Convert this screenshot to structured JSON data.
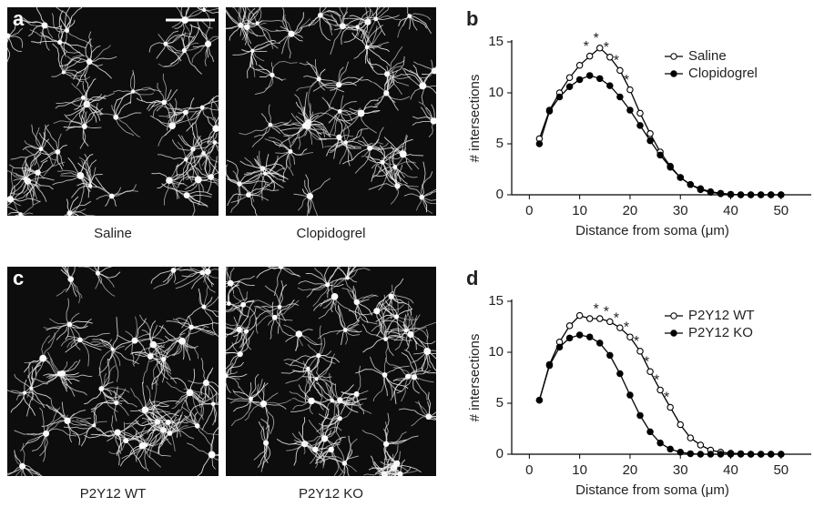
{
  "images": [
    {
      "letter": "a",
      "caption": "Saline"
    },
    {
      "caption": "Clopidogrel"
    },
    {
      "letter": "c",
      "caption": "P2Y12 WT"
    },
    {
      "caption": "P2Y12 KO"
    }
  ],
  "chart_data": [
    {
      "type": "line",
      "panel": "b",
      "x": [
        2,
        4,
        6,
        8,
        10,
        12,
        14,
        16,
        18,
        20,
        22,
        24,
        26,
        28,
        30,
        32,
        34,
        36,
        38,
        40,
        42,
        44,
        46,
        48,
        50
      ],
      "series": [
        {
          "name": "Saline",
          "color": "#000000",
          "marker": "open",
          "values": [
            5.5,
            8.3,
            10,
            11.5,
            12.7,
            13.6,
            14.4,
            13.5,
            12.2,
            10.3,
            8,
            6,
            4.2,
            2.8,
            1.7,
            1,
            0.6,
            0.3,
            0.15,
            0.05,
            0,
            0,
            0,
            0,
            0
          ]
        },
        {
          "name": "Clopidogrel",
          "color": "#000000",
          "marker": "filled",
          "values": [
            5,
            8.2,
            9.6,
            10.6,
            11.3,
            11.7,
            11.4,
            10.7,
            9.6,
            8.3,
            6.8,
            5.3,
            3.9,
            2.7,
            1.7,
            1,
            0.5,
            0.25,
            0.1,
            0.03,
            0,
            0,
            0,
            0,
            0
          ]
        }
      ],
      "annotations": [
        {
          "x": 12,
          "text": "*"
        },
        {
          "x": 14,
          "text": "*"
        },
        {
          "x": 16,
          "text": "*"
        },
        {
          "x": 18,
          "text": "*"
        },
        {
          "x": 20,
          "text": "*"
        }
      ],
      "x_label": "Distance from soma (μm)",
      "y_label": "# intersections",
      "xlim": [
        -3.5,
        56
      ],
      "ylim": [
        0,
        15
      ],
      "xticks": [
        0,
        10,
        20,
        30,
        40,
        50
      ],
      "yticks": [
        0,
        5,
        10,
        15
      ],
      "legend": "upper right"
    },
    {
      "type": "line",
      "panel": "d",
      "x": [
        2,
        4,
        6,
        8,
        10,
        12,
        14,
        16,
        18,
        20,
        22,
        24,
        26,
        28,
        30,
        32,
        34,
        36,
        38,
        40,
        42,
        44,
        46,
        48,
        50
      ],
      "series": [
        {
          "name": "P2Y12 WT",
          "color": "#000000",
          "marker": "open",
          "values": [
            5.3,
            8.8,
            11,
            12.6,
            13.6,
            13.3,
            13.3,
            13,
            12.4,
            11.5,
            10.1,
            8.1,
            6.3,
            4.6,
            2.9,
            1.6,
            0.9,
            0.4,
            0.2,
            0.1,
            0.05,
            0,
            0,
            0,
            0
          ]
        },
        {
          "name": "P2Y12 KO",
          "color": "#000000",
          "marker": "filled",
          "values": [
            5.3,
            8.7,
            10.5,
            11.4,
            11.7,
            11.5,
            10.9,
            9.7,
            7.9,
            5.8,
            3.8,
            2.2,
            1.1,
            0.5,
            0.2,
            0.05,
            0,
            0,
            0,
            0,
            0,
            0,
            0,
            0,
            0
          ]
        }
      ],
      "annotations": [
        {
          "x": 14,
          "text": "*"
        },
        {
          "x": 16,
          "text": "*"
        },
        {
          "x": 18,
          "text": "*"
        },
        {
          "x": 20,
          "text": "*"
        },
        {
          "x": 22,
          "text": "*"
        },
        {
          "x": 24,
          "text": "*"
        },
        {
          "x": 26,
          "text": "*"
        },
        {
          "x": 28,
          "text": "*"
        }
      ],
      "x_label": "Distance from soma (μm)",
      "y_label": "# intersections",
      "xlim": [
        -3.5,
        56
      ],
      "ylim": [
        0,
        15
      ],
      "xticks": [
        0,
        10,
        20,
        30,
        40,
        50
      ],
      "yticks": [
        0,
        5,
        10,
        15
      ],
      "legend": "upper right"
    }
  ]
}
